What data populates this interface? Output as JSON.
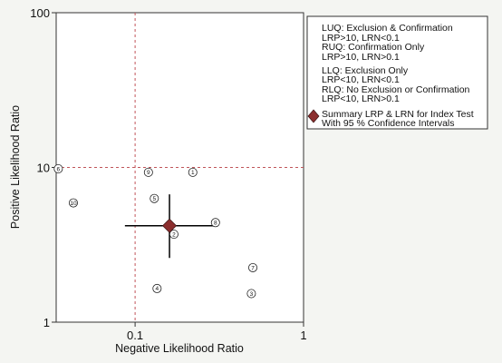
{
  "chart_data": {
    "type": "scatter",
    "xlabel": "Negative Likelihood Ratio",
    "ylabel": "Positive Likelihood Ratio",
    "x_scale": "log",
    "y_scale": "log",
    "xlim": [
      0.034,
      1
    ],
    "ylim": [
      1,
      100
    ],
    "xticks": [
      {
        "value": 0.1,
        "label": "0.1"
      },
      {
        "value": 1,
        "label": "1"
      }
    ],
    "yticks": [
      {
        "value": 1,
        "label": "1"
      },
      {
        "value": 10,
        "label": "10"
      },
      {
        "value": 100,
        "label": "100"
      }
    ],
    "reference_lines": {
      "x": 0.1,
      "y": 10,
      "color": "#c0555a"
    },
    "studies": [
      {
        "label": "1",
        "x": 0.22,
        "y": 9.3
      },
      {
        "label": "2",
        "x": 0.17,
        "y": 3.7
      },
      {
        "label": "3",
        "x": 0.49,
        "y": 1.53
      },
      {
        "label": "4",
        "x": 0.135,
        "y": 1.65
      },
      {
        "label": "5",
        "x": 0.13,
        "y": 6.3
      },
      {
        "label": "6",
        "x": 0.035,
        "y": 9.8
      },
      {
        "label": "7",
        "x": 0.5,
        "y": 2.25
      },
      {
        "label": "8",
        "x": 0.3,
        "y": 4.4
      },
      {
        "label": "9",
        "x": 0.12,
        "y": 9.3
      },
      {
        "label": "10",
        "x": 0.043,
        "y": 5.9
      }
    ],
    "summary": {
      "x": 0.16,
      "y": 4.2,
      "x_ci": [
        0.087,
        0.3
      ],
      "y_ci": [
        2.6,
        6.7
      ],
      "color": "#8b2e2e"
    },
    "legend": {
      "placement": "top-right",
      "lines": [
        "LUQ: Exclusion & Confirmation",
        "LRP>10, LRN<0.1",
        "RUQ: Confirmation Only",
        "LRP>10, LRN>0.1",
        "LLQ: Exclusion Only",
        "LRP<10, LRN<0.1",
        "RLQ: No Exclusion or Confirmation",
        "LRP<10, LRN>0.1"
      ],
      "summary_lines": [
        "Summary LRP & LRN for Index Test",
        "With 95 % Confidence Intervals"
      ]
    }
  }
}
